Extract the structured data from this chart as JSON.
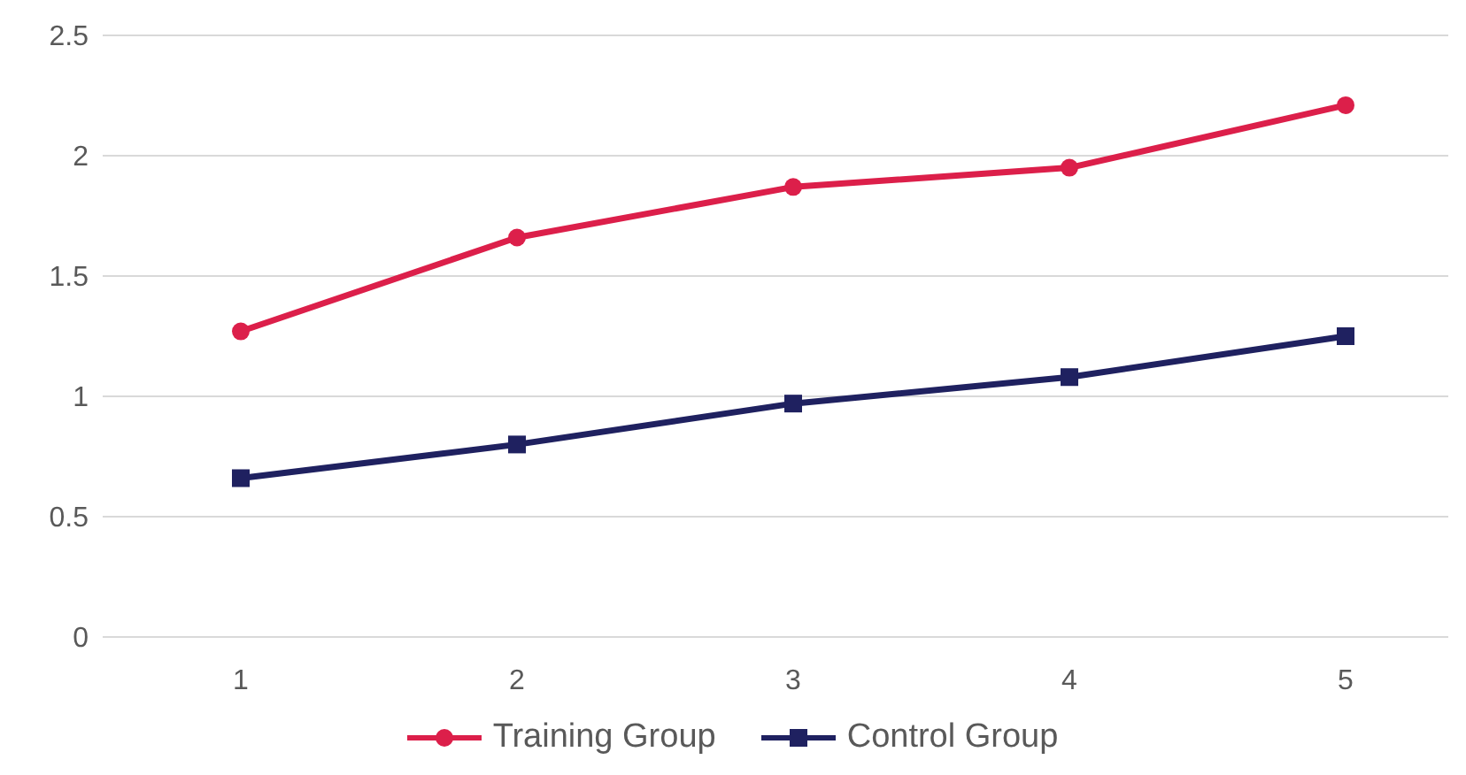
{
  "chart_data": {
    "type": "line",
    "categories": [
      "1",
      "2",
      "3",
      "4",
      "5"
    ],
    "series": [
      {
        "name": "Training Group",
        "color": "#dc1f4a",
        "marker": "circle",
        "values": [
          1.27,
          1.66,
          1.87,
          1.95,
          2.21
        ]
      },
      {
        "name": "Control Group",
        "color": "#1f2160",
        "marker": "square",
        "values": [
          0.66,
          0.8,
          0.97,
          1.08,
          1.25
        ]
      }
    ],
    "ylim": [
      0,
      2.5
    ],
    "yticks": [
      0,
      0.5,
      1,
      1.5,
      2,
      2.5
    ],
    "grid": "y",
    "legend": "bottom",
    "line_style": "solid"
  }
}
